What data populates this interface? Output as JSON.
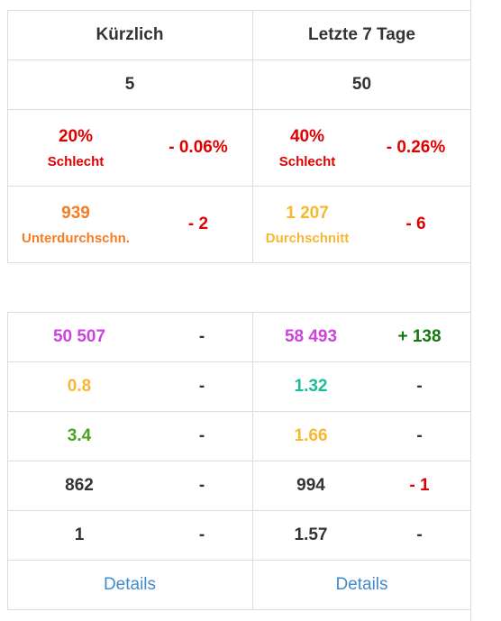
{
  "header": {
    "col_recent": "Kürzlich",
    "col_week": "Letzte 7 Tage"
  },
  "counts": {
    "recent": "5",
    "week": "50"
  },
  "quality": {
    "recent": {
      "pct": "20%",
      "label": "Schlecht",
      "delta": "- 0.06%"
    },
    "week": {
      "pct": "40%",
      "label": "Schlecht",
      "delta": "- 0.26%"
    }
  },
  "score": {
    "recent": {
      "value": "939",
      "label": "Unterdurchschn.",
      "delta": "- 2"
    },
    "week": {
      "value": "1 207",
      "label": "Durchschnitt",
      "delta": "- 6"
    }
  },
  "rows": [
    {
      "recent": "50 507",
      "recent_delta": "-",
      "week": "58 493",
      "week_delta": "+ 138",
      "recent_color": "#cc44dd",
      "week_color": "#cc44dd",
      "recent_delta_color": "#333333",
      "week_delta_color": "#11770f"
    },
    {
      "recent": "0.8",
      "recent_delta": "-",
      "week": "1.32",
      "week_delta": "-",
      "recent_color": "#f7b731",
      "week_color": "#1abc9c",
      "recent_delta_color": "#333333",
      "week_delta_color": "#333333"
    },
    {
      "recent": "3.4",
      "recent_delta": "-",
      "week": "1.66",
      "week_delta": "-",
      "recent_color": "#4aa31f",
      "week_color": "#f7b731",
      "recent_delta_color": "#333333",
      "week_delta_color": "#333333"
    },
    {
      "recent": "862",
      "recent_delta": "-",
      "week": "994",
      "week_delta": "- 1",
      "recent_color": "#333333",
      "week_color": "#333333",
      "recent_delta_color": "#333333",
      "week_delta_color": "#e00000"
    },
    {
      "recent": "1",
      "recent_delta": "-",
      "week": "1.57",
      "week_delta": "-",
      "recent_color": "#333333",
      "week_color": "#333333",
      "recent_delta_color": "#333333",
      "week_delta_color": "#333333"
    }
  ],
  "footer": {
    "recent_link": "Details",
    "week_link": "Details"
  },
  "colors": {
    "bad": "#e00000",
    "below_avg": "#f57c20",
    "average": "#f7b731",
    "link": "#428bca"
  }
}
